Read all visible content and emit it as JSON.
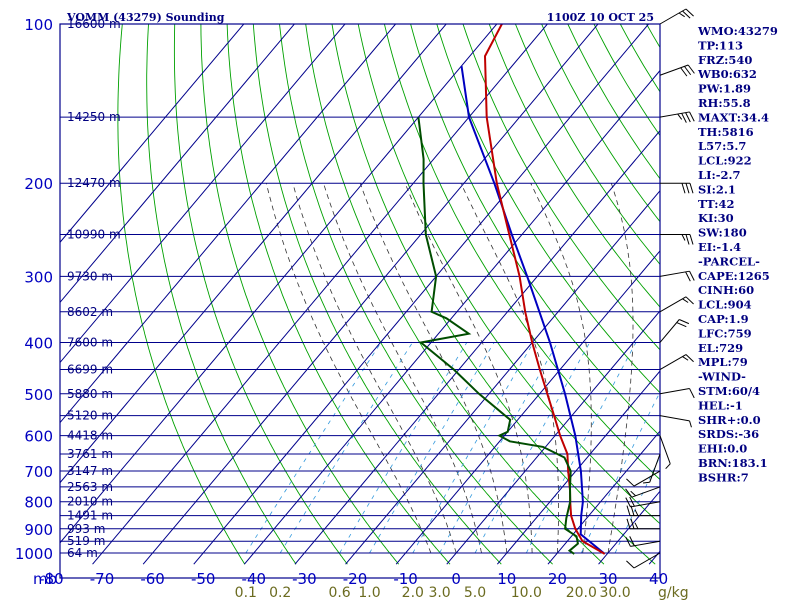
{
  "header": {
    "station": "VOMM (43279) Sounding",
    "time": "1100Z 10 OCT 25"
  },
  "chart_data": {
    "type": "skew-t",
    "title": "VOMM (43279) Sounding",
    "valid_time": "1100Z 10 OCT 25",
    "pressure_unit": "mb",
    "mixing_unit": "g/kg",
    "pressure_levels": [
      100,
      200,
      300,
      400,
      500,
      600,
      700,
      800,
      900,
      1000
    ],
    "temperature_ticks": [
      -80,
      -70,
      -60,
      -50,
      -40,
      -30,
      -20,
      -10,
      0,
      10,
      20,
      30,
      40
    ],
    "mixing_ratio_labels": [
      "0.1",
      "0.2",
      "0.6",
      "1.0",
      "2.0",
      "3.0",
      "5.0",
      "10.0",
      "20.0",
      "30.0"
    ],
    "mixing_ratio_values": [
      0.1,
      0.2,
      0.6,
      1.0,
      2.0,
      3.0,
      5.0,
      10.0,
      20.0,
      30.0
    ],
    "height_labels": [
      {
        "p": 100,
        "text": "16600 m"
      },
      {
        "p": 150,
        "text": "14250 m"
      },
      {
        "p": 200,
        "text": "12470 m"
      },
      {
        "p": 250,
        "text": "10990 m"
      },
      {
        "p": 300,
        "text": "9730 m"
      },
      {
        "p": 350,
        "text": "8602 m"
      },
      {
        "p": 400,
        "text": "7600 m"
      },
      {
        "p": 450,
        "text": "6699 m"
      },
      {
        "p": 500,
        "text": "5880 m"
      },
      {
        "p": 550,
        "text": "5120 m"
      },
      {
        "p": 600,
        "text": "4418 m"
      },
      {
        "p": 650,
        "text": "3761 m"
      },
      {
        "p": 700,
        "text": "3147 m"
      },
      {
        "p": 750,
        "text": "2563 m"
      },
      {
        "p": 800,
        "text": "2010 m"
      },
      {
        "p": 850,
        "text": "1491 m"
      },
      {
        "p": 900,
        "text": "993 m"
      },
      {
        "p": 950,
        "text": "519 m"
      },
      {
        "p": 1000,
        "text": "64 m"
      }
    ],
    "temperature_profile": [
      [
        1004,
        29.5
      ],
      [
        950,
        23.0
      ],
      [
        900,
        19.5
      ],
      [
        850,
        16.5
      ],
      [
        800,
        14.0
      ],
      [
        760,
        12.0
      ],
      [
        700,
        8.5
      ],
      [
        650,
        5.5
      ],
      [
        600,
        1.0
      ],
      [
        550,
        -3.5
      ],
      [
        500,
        -8.5
      ],
      [
        450,
        -14.0
      ],
      [
        400,
        -20.0
      ],
      [
        350,
        -26.5
      ],
      [
        300,
        -33.5
      ],
      [
        250,
        -42.5
      ],
      [
        200,
        -53.5
      ],
      [
        150,
        -66.5
      ],
      [
        115,
        -77.0
      ],
      [
        100,
        -79.0
      ]
    ],
    "dewpoint_profile": [
      [
        1004,
        23.5
      ],
      [
        990,
        22.0
      ],
      [
        960,
        22.5
      ],
      [
        930,
        21.0
      ],
      [
        900,
        17.5
      ],
      [
        860,
        16.0
      ],
      [
        800,
        14.0
      ],
      [
        750,
        11.5
      ],
      [
        700,
        9.0
      ],
      [
        660,
        5.5
      ],
      [
        630,
        -0.5
      ],
      [
        615,
        -8.0
      ],
      [
        600,
        -11.0
      ],
      [
        590,
        -10.0
      ],
      [
        560,
        -11.5
      ],
      [
        500,
        -22.0
      ],
      [
        450,
        -31.0
      ],
      [
        400,
        -42.0
      ],
      [
        385,
        -34.0
      ],
      [
        360,
        -41.0
      ],
      [
        350,
        -45.0
      ],
      [
        300,
        -50.0
      ],
      [
        250,
        -59.0
      ],
      [
        200,
        -68.0
      ],
      [
        180,
        -72.0
      ],
      [
        150,
        -80.0
      ]
    ],
    "parcel_profile": [
      [
        1004,
        29.5
      ],
      [
        922,
        21.5
      ],
      [
        850,
        18.5
      ],
      [
        800,
        16.5
      ],
      [
        700,
        11.0
      ],
      [
        600,
        4.0
      ],
      [
        500,
        -5.0
      ],
      [
        400,
        -16.5
      ],
      [
        300,
        -32.0
      ],
      [
        250,
        -42.0
      ],
      [
        200,
        -54.0
      ],
      [
        150,
        -70.0
      ],
      [
        120,
        -80.0
      ]
    ],
    "wind_barbs": [
      {
        "p": 1000,
        "dir": 240,
        "spd": 10
      },
      {
        "p": 950,
        "dir": 260,
        "spd": 20
      },
      {
        "p": 900,
        "dir": 270,
        "spd": 25
      },
      {
        "p": 850,
        "dir": 270,
        "spd": 25
      },
      {
        "p": 800,
        "dir": 260,
        "spd": 20
      },
      {
        "p": 750,
        "dir": 250,
        "spd": 15
      },
      {
        "p": 700,
        "dir": 240,
        "spd": 10
      },
      {
        "p": 650,
        "dir": 200,
        "spd": 5
      },
      {
        "p": 600,
        "dir": 160,
        "spd": 5
      },
      {
        "p": 550,
        "dir": 100,
        "spd": 5
      },
      {
        "p": 500,
        "dir": 80,
        "spd": 10
      },
      {
        "p": 450,
        "dir": 60,
        "spd": 15
      },
      {
        "p": 400,
        "dir": 40,
        "spd": 20
      },
      {
        "p": 350,
        "dir": 60,
        "spd": 15
      },
      {
        "p": 300,
        "dir": 80,
        "spd": 20
      },
      {
        "p": 250,
        "dir": 90,
        "spd": 25
      },
      {
        "p": 200,
        "dir": 90,
        "spd": 30
      },
      {
        "p": 150,
        "dir": 80,
        "spd": 35
      },
      {
        "p": 125,
        "dir": 70,
        "spd": 30
      },
      {
        "p": 100,
        "dir": 60,
        "spd": 25
      }
    ]
  },
  "indices": [
    "WMO:43279",
    "TP:113",
    "FRZ:540",
    "WB0:632",
    "PW:1.89",
    "RH:55.8",
    "MAXT:34.4",
    "TH:5816",
    "L57:5.7",
    "LCL:922",
    "LI:-2.7",
    "SI:2.1",
    "TT:42",
    "KI:30",
    "SW:180",
    "EI:-1.4",
    "-PARCEL-",
    "CAPE:1265",
    "CINH:60",
    "LCL:904",
    "CAP:1.9",
    "LFC:759",
    "EL:729",
    "MPL:79",
    "-WIND-",
    "STM:60/4",
    "HEL:-1",
    "SHR+:0.0",
    "SRDS:-36",
    "EHI:0.0",
    "BRN:183.1",
    "BSHR:7"
  ],
  "colors": {
    "grid": "#00008b",
    "dry_adiabat": "#00a000",
    "moist_adiabat": "#333333",
    "mixing_ratio": "#3399dd",
    "temperature": "#c00000",
    "dewpoint": "#004d00",
    "parcel": "#0000c0",
    "text": "#000080"
  }
}
